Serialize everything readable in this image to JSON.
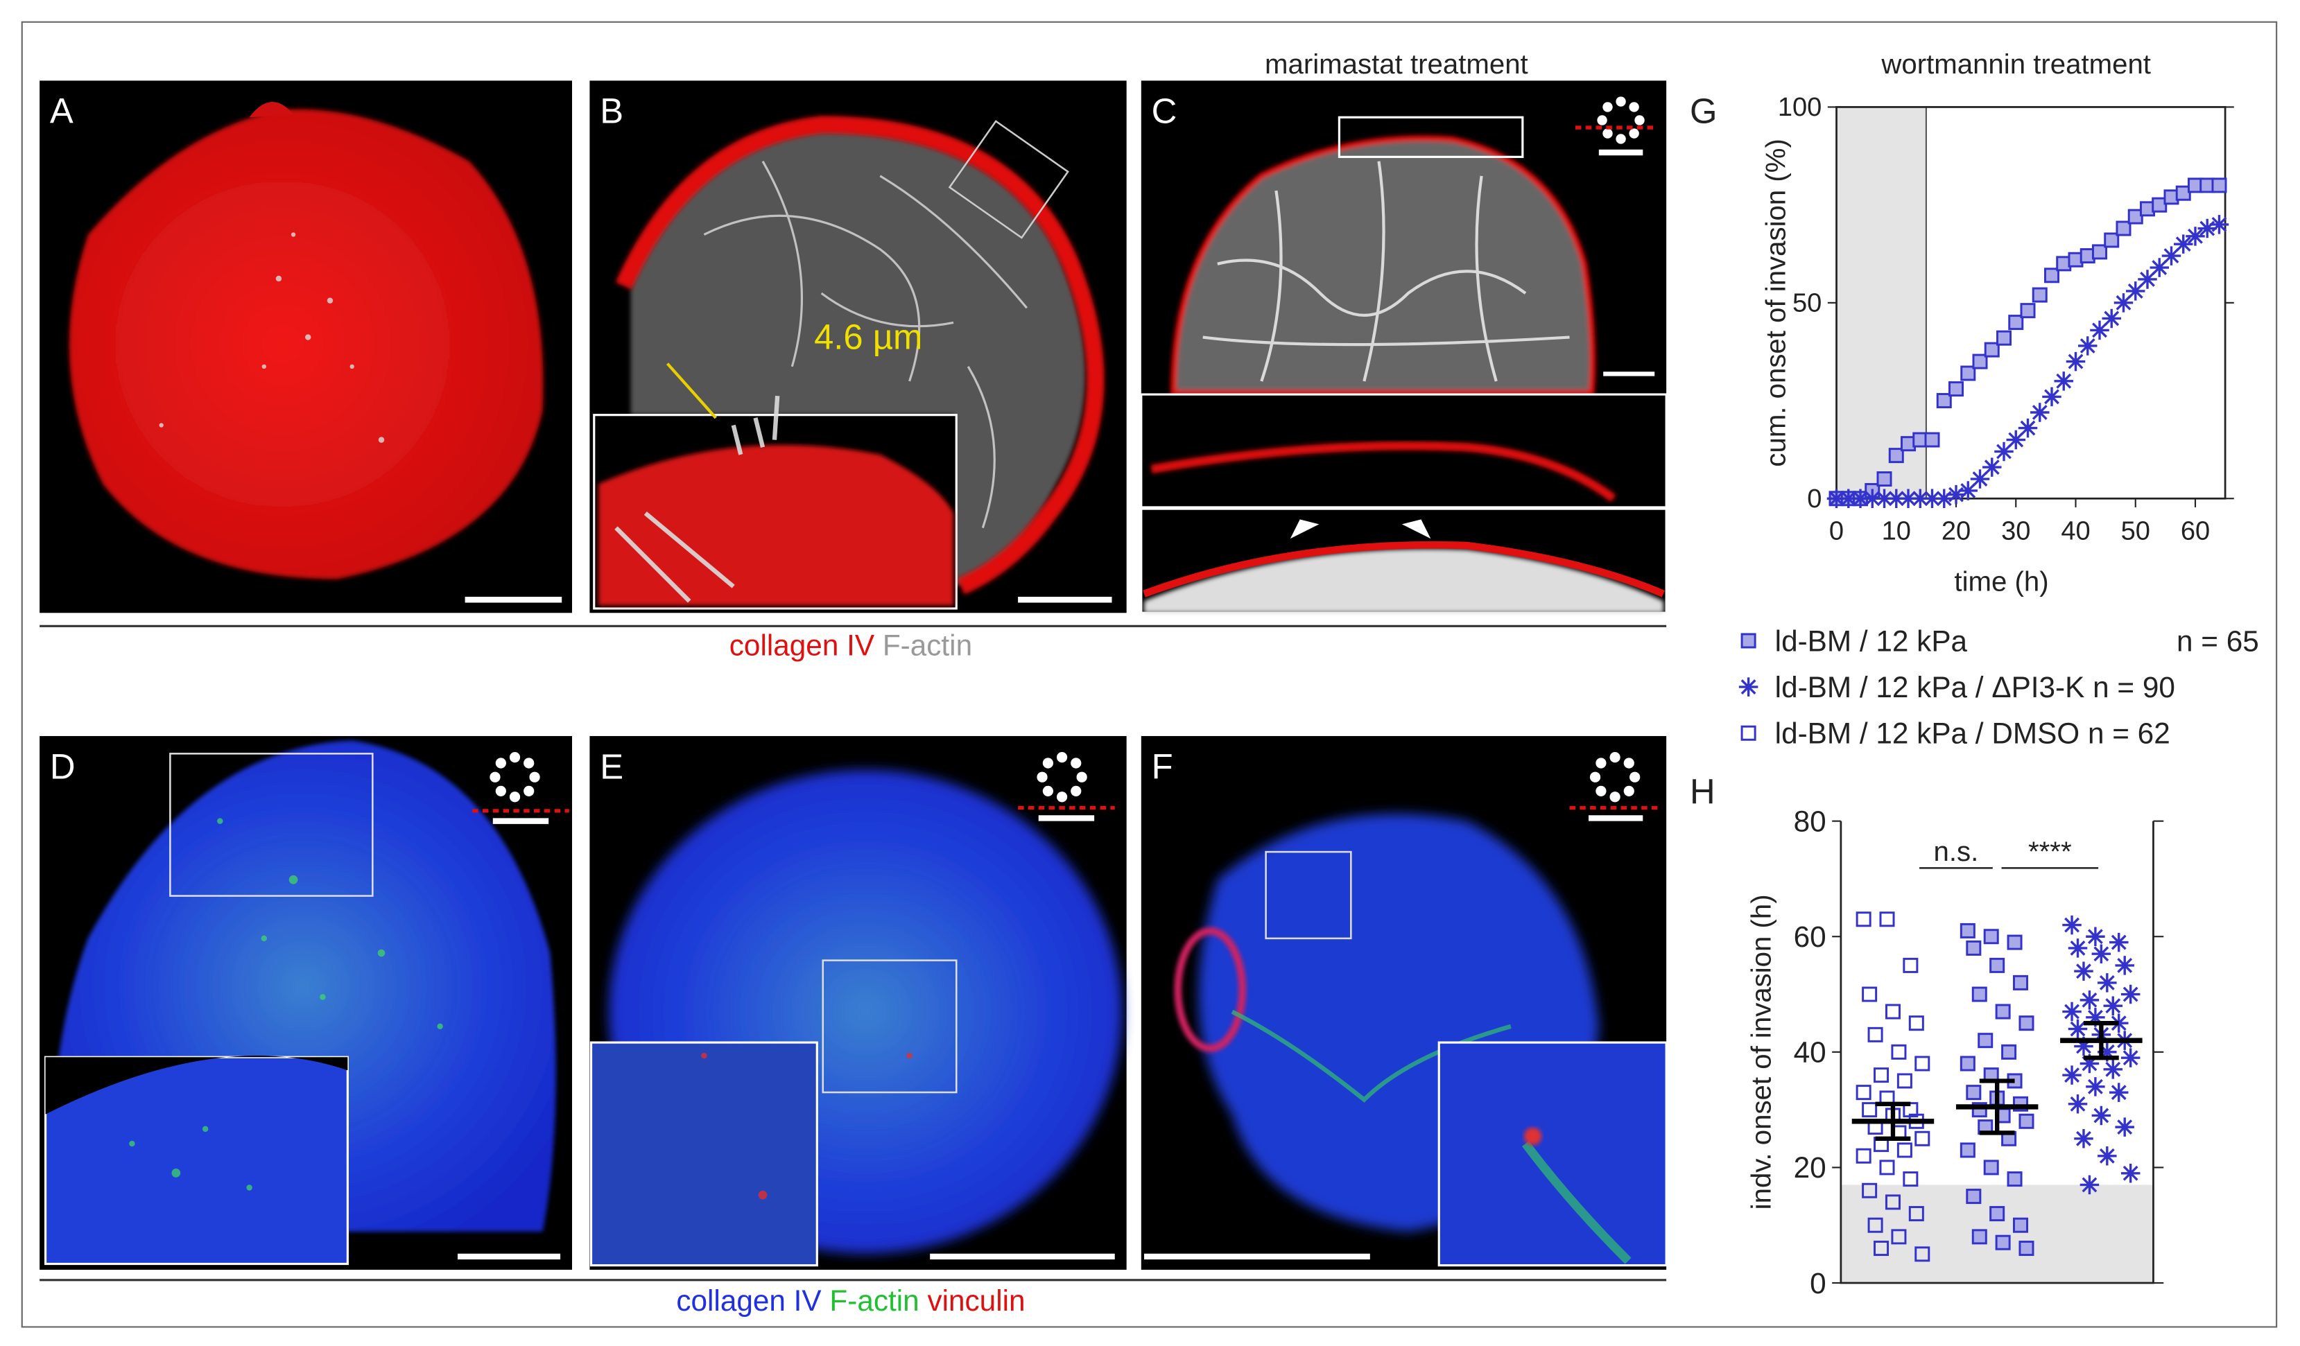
{
  "panels": [
    {
      "label": "A"
    },
    {
      "label": "B"
    },
    {
      "label": "C"
    },
    {
      "label": "D"
    },
    {
      "label": "E"
    },
    {
      "label": "F"
    }
  ],
  "panel_C_title": "marimastat treatment",
  "panel_B_measure": "4.6 µm",
  "caption_top": {
    "stain1": "collagen IV",
    "stain2": "F-actin"
  },
  "caption_bottom": {
    "stain1": "collagen IV",
    "stain2": "F-actin",
    "stain3": "vinculin"
  },
  "legend": [
    {
      "label": "ld-BM / 12 kPa",
      "n": "n = 65",
      "marker": "filled-square"
    },
    {
      "label": "ld-BM / 12 kPa / ΔPI3-K n = 90",
      "marker": "star"
    },
    {
      "label": "ld-BM / 12 kPa / DMSO n = 62",
      "marker": "open-square"
    }
  ],
  "chart_data": [
    {
      "type": "scatter",
      "panel_label": "G",
      "title": "wortmannin treatment",
      "x_label": "time (h)",
      "y_label": "cum. onset of invasion (%)",
      "x": [
        0,
        2,
        4,
        6,
        8,
        10,
        12,
        14,
        16,
        18,
        20,
        22,
        24,
        26,
        28,
        30,
        32,
        34,
        36,
        38,
        40,
        42,
        44,
        46,
        48,
        50,
        52,
        54,
        56,
        58,
        60,
        62,
        64
      ],
      "series": [
        {
          "marker": "filled-square",
          "color": "#3333cc",
          "values": [
            0,
            0,
            0,
            2,
            5,
            11,
            14,
            15,
            15,
            25,
            28,
            32,
            35,
            38,
            41,
            45,
            48,
            52,
            57,
            60,
            61,
            62,
            63,
            66,
            69,
            72,
            74,
            75,
            77,
            78,
            80,
            80,
            80
          ]
        },
        {
          "marker": "star",
          "color": "#3333cc",
          "values": [
            0,
            0,
            0,
            0,
            0,
            0,
            0,
            0,
            0,
            0,
            1,
            2,
            5,
            8,
            12,
            15,
            18,
            22,
            26,
            30,
            35,
            39,
            43,
            46,
            50,
            53,
            56,
            59,
            62,
            65,
            67,
            69,
            70
          ]
        }
      ],
      "shaded_xrange": [
        0,
        15
      ],
      "xlim": [
        0,
        65
      ],
      "ylim": [
        0,
        100
      ],
      "xticks": [
        0,
        10,
        20,
        30,
        40,
        50,
        60
      ],
      "yticks": [
        0,
        50,
        100
      ]
    },
    {
      "type": "strip",
      "panel_label": "H",
      "y_label": "indv. onset of invasion (h)",
      "annotations": [
        {
          "text": "n.s."
        },
        {
          "text": "****"
        }
      ],
      "series": [
        {
          "marker": "open-square",
          "color": "#3333cc",
          "values": [
            63,
            63,
            55,
            50,
            47,
            45,
            43,
            40,
            38,
            36,
            35,
            33,
            32,
            30,
            30,
            29,
            28,
            27,
            26,
            25,
            24,
            23,
            22,
            20,
            18,
            16,
            14,
            12,
            10,
            8,
            5,
            6
          ],
          "mean": 28,
          "error": 3
        },
        {
          "marker": "filled-square",
          "color": "#3333cc",
          "values": [
            61,
            60,
            59,
            58,
            55,
            52,
            50,
            47,
            45,
            42,
            40,
            38,
            36,
            35,
            33,
            32,
            31,
            30,
            29,
            28,
            27,
            25,
            23,
            20,
            18,
            15,
            12,
            10,
            8,
            7,
            6
          ],
          "mean": 30.5,
          "error": 4.5
        },
        {
          "marker": "star",
          "color": "#3333cc",
          "values": [
            62,
            60,
            59,
            58,
            57,
            55,
            54,
            52,
            50,
            49,
            48,
            47,
            46,
            45,
            44,
            43,
            42,
            41,
            40,
            39,
            38,
            37,
            36,
            34,
            33,
            31,
            29,
            27,
            25,
            22,
            19,
            17
          ],
          "mean": 42,
          "error": 3
        }
      ],
      "shaded_yrange": [
        0,
        17
      ],
      "ylim": [
        0,
        80
      ],
      "yticks": [
        0,
        20,
        40,
        60,
        80
      ]
    }
  ]
}
